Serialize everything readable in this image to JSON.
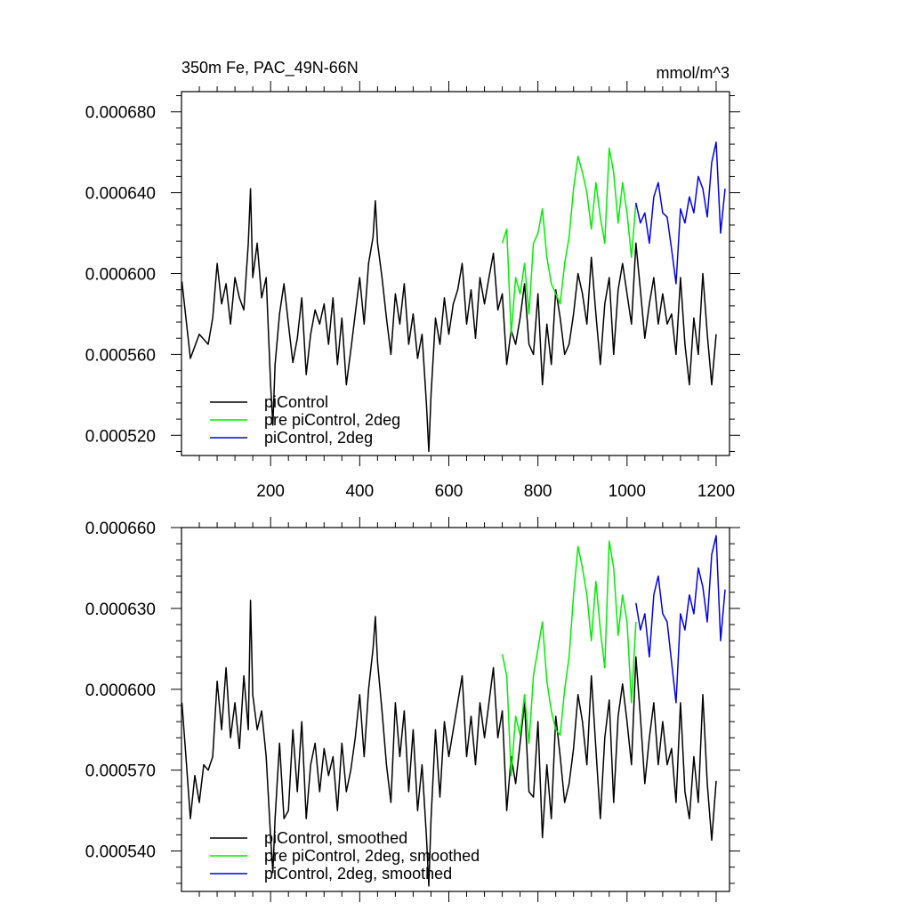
{
  "chart_data": [
    {
      "type": "line",
      "title_left": "350m Fe, PAC_49N-66N",
      "title_right": "mmol/m^3",
      "xlabel": "",
      "ylabel": "",
      "xlim": [
        0,
        1230
      ],
      "ylim": [
        0.00051,
        0.00069
      ],
      "yticks": [
        0.00052,
        0.00056,
        0.0006,
        0.00064,
        0.00068
      ],
      "ytick_labels": [
        "0.000520",
        "0.000560",
        "0.000600",
        "0.000640",
        "0.000680"
      ],
      "xticks": [
        200,
        400,
        600,
        800,
        1000,
        1200
      ],
      "xtick_labels": [
        "200",
        "400",
        "600",
        "800",
        "1000",
        "1200"
      ],
      "legend": {
        "placement": "bottom-left",
        "entries": [
          {
            "label": "piControl",
            "color": "#000000"
          },
          {
            "label": "pre piControl, 2deg",
            "color": "#00ee00"
          },
          {
            "label": "piControl, 2deg",
            "color": "#0000ee"
          }
        ]
      },
      "series": [
        {
          "name": "piControl",
          "color": "#000000",
          "x": [
            1,
            20,
            40,
            60,
            70,
            80,
            90,
            100,
            110,
            120,
            130,
            140,
            150,
            155,
            160,
            170,
            180,
            190,
            200,
            205,
            210,
            220,
            230,
            240,
            250,
            260,
            270,
            280,
            290,
            300,
            310,
            320,
            330,
            340,
            350,
            360,
            370,
            380,
            390,
            400,
            410,
            420,
            430,
            435,
            440,
            450,
            460,
            470,
            480,
            490,
            500,
            510,
            520,
            530,
            540,
            550,
            555,
            560,
            570,
            580,
            590,
            600,
            610,
            620,
            630,
            640,
            650,
            660,
            670,
            680,
            690,
            700,
            710,
            720,
            730,
            740,
            750,
            760,
            770,
            780,
            790,
            800,
            810,
            820,
            830,
            840,
            850,
            860,
            870,
            880,
            890,
            900,
            910,
            920,
            930,
            940,
            950,
            960,
            970,
            980,
            990,
            1000,
            1010,
            1020,
            1030,
            1040,
            1050,
            1060,
            1070,
            1080,
            1090,
            1100,
            1110,
            1120,
            1130,
            1140,
            1150,
            1160,
            1170,
            1180,
            1190,
            1200
          ],
          "values": [
            0.000596,
            0.000558,
            0.00057,
            0.000565,
            0.000578,
            0.000605,
            0.000585,
            0.000595,
            0.000575,
            0.000598,
            0.000588,
            0.000582,
            0.000615,
            0.000642,
            0.000598,
            0.000615,
            0.000588,
            0.000598,
            0.000545,
            0.000525,
            0.000555,
            0.00058,
            0.000595,
            0.000575,
            0.000556,
            0.000568,
            0.000588,
            0.00055,
            0.00057,
            0.000582,
            0.000575,
            0.000585,
            0.000565,
            0.000588,
            0.000555,
            0.000578,
            0.000545,
            0.000562,
            0.00058,
            0.000598,
            0.000575,
            0.000605,
            0.000618,
            0.000636,
            0.000615,
            0.000598,
            0.000578,
            0.00056,
            0.00059,
            0.000575,
            0.000595,
            0.000565,
            0.00058,
            0.000558,
            0.00057,
            0.000535,
            0.000512,
            0.00054,
            0.000578,
            0.000565,
            0.000588,
            0.00057,
            0.000585,
            0.000592,
            0.000605,
            0.000575,
            0.000592,
            0.000568,
            0.000598,
            0.000585,
            0.000598,
            0.00061,
            0.000582,
            0.00059,
            0.000555,
            0.000572,
            0.000565,
            0.000578,
            0.000595,
            0.000565,
            0.00056,
            0.00059,
            0.000545,
            0.000575,
            0.000555,
            0.000592,
            0.000578,
            0.00056,
            0.000565,
            0.00058,
            0.0006,
            0.00059,
            0.000575,
            0.000608,
            0.00058,
            0.000555,
            0.000585,
            0.000598,
            0.00056,
            0.000592,
            0.000605,
            0.00059,
            0.000575,
            0.000615,
            0.000592,
            0.000568,
            0.000585,
            0.000598,
            0.000575,
            0.00059,
            0.000575,
            0.00058,
            0.00056,
            0.000598,
            0.000565,
            0.000545,
            0.000578,
            0.00056,
            0.0006,
            0.00057,
            0.000545,
            0.00057
          ]
        },
        {
          "name": "pre piControl, 2deg",
          "color": "#00ee00",
          "x": [
            720,
            730,
            740,
            750,
            760,
            770,
            780,
            790,
            800,
            810,
            820,
            830,
            840,
            850,
            860,
            870,
            880,
            890,
            900,
            910,
            920,
            930,
            940,
            950,
            960,
            970,
            980,
            990,
            1000,
            1010,
            1020
          ],
          "values": [
            0.000615,
            0.000622,
            0.00057,
            0.000598,
            0.00059,
            0.000605,
            0.00058,
            0.000615,
            0.00062,
            0.000632,
            0.000608,
            0.000595,
            0.00059,
            0.000585,
            0.000605,
            0.000618,
            0.000642,
            0.000658,
            0.00065,
            0.00064,
            0.000622,
            0.000645,
            0.000628,
            0.000615,
            0.000662,
            0.00065,
            0.000625,
            0.000645,
            0.00063,
            0.000608,
            0.000635
          ]
        },
        {
          "name": "piControl, 2deg",
          "color": "#0000ee",
          "x": [
            1020,
            1030,
            1040,
            1050,
            1060,
            1070,
            1080,
            1090,
            1100,
            1110,
            1120,
            1130,
            1140,
            1150,
            1160,
            1170,
            1180,
            1190,
            1200,
            1210,
            1220
          ],
          "values": [
            0.000635,
            0.000625,
            0.00063,
            0.000615,
            0.000638,
            0.000645,
            0.00063,
            0.000628,
            0.000612,
            0.000595,
            0.000632,
            0.000625,
            0.000638,
            0.00063,
            0.000648,
            0.000642,
            0.000628,
            0.000655,
            0.000665,
            0.00062,
            0.000642
          ]
        }
      ]
    },
    {
      "type": "line",
      "title_left": "",
      "title_right": "",
      "xlabel": "",
      "ylabel": "",
      "xlim": [
        0,
        1230
      ],
      "ylim": [
        0.000525,
        0.00066
      ],
      "yticks": [
        0.00054,
        0.00057,
        0.0006,
        0.00063,
        0.00066
      ],
      "ytick_labels": [
        "0.000540",
        "0.000570",
        "0.000600",
        "0.000630",
        "0.000660"
      ],
      "xticks": [
        200,
        400,
        600,
        800,
        1000,
        1200
      ],
      "xtick_labels": [],
      "legend": {
        "placement": "bottom-left",
        "entries": [
          {
            "label": "piControl, smoothed",
            "color": "#000000"
          },
          {
            "label": "pre piControl, 2deg, smoothed",
            "color": "#00ee00"
          },
          {
            "label": "piControl, 2deg, smoothed",
            "color": "#0000ee"
          }
        ]
      },
      "series": [
        {
          "name": "piControl, smoothed",
          "color": "#000000",
          "x": [
            1,
            10,
            20,
            30,
            40,
            50,
            60,
            70,
            80,
            90,
            100,
            110,
            120,
            130,
            140,
            150,
            155,
            160,
            170,
            180,
            190,
            200,
            205,
            210,
            220,
            230,
            240,
            250,
            260,
            270,
            280,
            290,
            300,
            310,
            320,
            330,
            340,
            350,
            360,
            370,
            380,
            390,
            400,
            410,
            420,
            430,
            435,
            440,
            450,
            460,
            470,
            480,
            490,
            500,
            510,
            520,
            530,
            540,
            550,
            555,
            560,
            570,
            580,
            590,
            600,
            610,
            620,
            630,
            640,
            650,
            660,
            670,
            680,
            690,
            700,
            710,
            720,
            730,
            740,
            750,
            760,
            770,
            780,
            790,
            800,
            810,
            820,
            830,
            840,
            850,
            860,
            870,
            880,
            890,
            900,
            910,
            920,
            930,
            940,
            950,
            960,
            970,
            980,
            990,
            1000,
            1010,
            1020,
            1030,
            1040,
            1050,
            1060,
            1070,
            1080,
            1090,
            1100,
            1110,
            1120,
            1130,
            1140,
            1150,
            1160,
            1170,
            1180,
            1190,
            1200
          ],
          "values": [
            0.000595,
            0.000575,
            0.000552,
            0.000568,
            0.000558,
            0.000572,
            0.00057,
            0.000575,
            0.000603,
            0.000585,
            0.000608,
            0.000582,
            0.000595,
            0.000578,
            0.000605,
            0.000585,
            0.000633,
            0.000598,
            0.000585,
            0.000592,
            0.000575,
            0.000545,
            0.000532,
            0.000552,
            0.00058,
            0.000552,
            0.000555,
            0.000585,
            0.000562,
            0.000588,
            0.000552,
            0.000572,
            0.00058,
            0.000562,
            0.000578,
            0.000568,
            0.000575,
            0.000555,
            0.00058,
            0.000562,
            0.00057,
            0.000582,
            0.000598,
            0.000575,
            0.0006,
            0.000615,
            0.000627,
            0.00061,
            0.000592,
            0.000572,
            0.000558,
            0.000595,
            0.000575,
            0.000592,
            0.000562,
            0.000585,
            0.000555,
            0.000572,
            0.000545,
            0.000527,
            0.000552,
            0.000585,
            0.00056,
            0.000588,
            0.000575,
            0.000585,
            0.000595,
            0.000605,
            0.000575,
            0.00059,
            0.000572,
            0.000595,
            0.000582,
            0.000595,
            0.000608,
            0.000582,
            0.000592,
            0.000555,
            0.000575,
            0.000565,
            0.00058,
            0.000595,
            0.000562,
            0.00056,
            0.000588,
            0.000545,
            0.000572,
            0.000552,
            0.00059,
            0.000575,
            0.000558,
            0.000565,
            0.000578,
            0.000598,
            0.000588,
            0.000572,
            0.000605,
            0.000578,
            0.000552,
            0.000582,
            0.000596,
            0.000558,
            0.00059,
            0.000602,
            0.000588,
            0.000572,
            0.000612,
            0.00059,
            0.000565,
            0.000582,
            0.000595,
            0.000572,
            0.000588,
            0.000572,
            0.000578,
            0.000558,
            0.000595,
            0.000562,
            0.000552,
            0.000575,
            0.000558,
            0.000598,
            0.000565,
            0.000544,
            0.000566
          ]
        },
        {
          "name": "pre piControl, 2deg, smoothed",
          "color": "#00ee00",
          "x": [
            720,
            730,
            740,
            750,
            760,
            770,
            780,
            790,
            800,
            810,
            820,
            830,
            840,
            850,
            860,
            870,
            880,
            890,
            900,
            910,
            920,
            930,
            940,
            950,
            960,
            970,
            980,
            990,
            1000,
            1010,
            1020
          ],
          "values": [
            0.000613,
            0.000605,
            0.000568,
            0.00059,
            0.000583,
            0.000598,
            0.00058,
            0.000605,
            0.000615,
            0.000625,
            0.000603,
            0.000592,
            0.000585,
            0.000583,
            0.0006,
            0.000612,
            0.000635,
            0.000653,
            0.000645,
            0.000635,
            0.000618,
            0.00064,
            0.000622,
            0.000608,
            0.000655,
            0.000645,
            0.00062,
            0.000635,
            0.000625,
            0.000595,
            0.000625
          ]
        },
        {
          "name": "piControl, 2deg, smoothed",
          "color": "#0000ee",
          "x": [
            1020,
            1030,
            1040,
            1050,
            1060,
            1070,
            1080,
            1090,
            1100,
            1110,
            1120,
            1130,
            1140,
            1150,
            1160,
            1170,
            1180,
            1190,
            1200,
            1210,
            1220
          ],
          "values": [
            0.000632,
            0.000622,
            0.000628,
            0.000612,
            0.000635,
            0.000642,
            0.000628,
            0.000625,
            0.00061,
            0.000595,
            0.000628,
            0.000622,
            0.000635,
            0.000628,
            0.000645,
            0.000638,
            0.000625,
            0.00065,
            0.000657,
            0.000618,
            0.000637
          ]
        }
      ]
    }
  ]
}
